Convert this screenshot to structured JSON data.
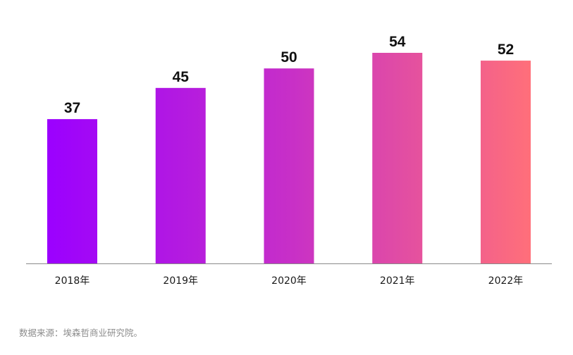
{
  "chart_data": {
    "type": "bar",
    "categories": [
      "2018年",
      "2019年",
      "2020年",
      "2021年",
      "2022年"
    ],
    "values": [
      37,
      45,
      50,
      54,
      52
    ],
    "ylim": [
      0,
      54
    ],
    "grid": false,
    "legend": "none",
    "bar_colors": [
      "#9b00ff",
      "#b21ee6",
      "#c72fc8",
      "#e04aa0",
      "#ff6f7a"
    ]
  },
  "source": "数据来源：埃森哲商业研究院。"
}
